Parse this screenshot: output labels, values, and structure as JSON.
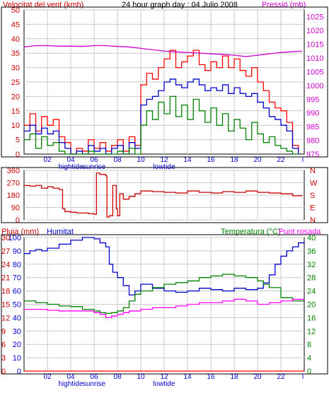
{
  "colors": {
    "wind_speed": "#ff0000",
    "wind_gust_avg": "#0000cc",
    "wind_min": "#008000",
    "pressure": "#cc00cc",
    "wind_dir": "#cc0000",
    "rain": "#ff0000",
    "humidity": "#0000cc",
    "temperature": "#008000",
    "dewpoint": "#ff00ff",
    "axis_left": "#cc0000",
    "axis_right": "#cc00cc",
    "frame": "#000000"
  },
  "header": {
    "left_label": "Velocitat del vent (kmh)",
    "title": "24 hour graph day : 04 Julio 2008",
    "right_label": "Pressió (mb)"
  },
  "time_axis": {
    "ticks": [
      "02",
      "04",
      "06",
      "08",
      "10",
      "12",
      "14",
      "16",
      "18",
      "20",
      "22",
      "l"
    ],
    "annotations": [
      {
        "label": "hightide",
        "near": "04"
      },
      {
        "label": "sunrise",
        "near": "06"
      },
      {
        "label": "lowtide",
        "near": "12"
      }
    ]
  },
  "panel3_header": {
    "rain_label": "Pluja (mm)",
    "humidity_label": "Humitat",
    "temp_label": "Temperatura (°C)",
    "dew_label": "Punt rosada"
  },
  "chart_data": [
    {
      "type": "line",
      "x_range": [
        0,
        24
      ],
      "y_left_ticks": [
        "0",
        "5",
        "10",
        "15",
        "20",
        "25",
        "30",
        "35",
        "40",
        "45",
        "50"
      ],
      "y_left_range": [
        0,
        50
      ],
      "y_right_ticks": [
        "975",
        "980",
        "985",
        "990",
        "995",
        "1000",
        "1005",
        "1010",
        "1015",
        "1020",
        "1025"
      ],
      "y_right_range": [
        975,
        1027.5
      ],
      "series": [
        {
          "key": "wind_speed",
          "axis": "left",
          "x": [
            0,
            0.5,
            1,
            1.5,
            2,
            2.5,
            3,
            3.5,
            4,
            4.5,
            5,
            5.5,
            6,
            6.5,
            7,
            7.5,
            8,
            8.5,
            9,
            9.5,
            10,
            10.5,
            11,
            11.5,
            12,
            12.5,
            13,
            13.5,
            14,
            14.5,
            15,
            15.5,
            16,
            16.5,
            17,
            17.5,
            18,
            18.5,
            19,
            19.5,
            20,
            20.5,
            21,
            21.5,
            22,
            22.5,
            23,
            23.5
          ],
          "y": [
            10,
            14,
            8,
            13,
            10,
            12,
            6,
            4,
            0,
            2,
            1,
            5,
            2,
            4,
            1,
            3,
            5,
            1,
            6,
            3,
            24,
            28,
            26,
            30,
            33,
            36,
            30,
            32,
            34,
            36,
            31,
            29,
            32,
            30,
            34,
            30,
            33,
            29,
            27,
            30,
            25,
            22,
            18,
            16,
            15,
            11,
            3,
            1
          ]
        },
        {
          "key": "wind_gust_avg",
          "axis": "left",
          "x": [
            0,
            0.5,
            1,
            1.5,
            2,
            2.5,
            3,
            3.5,
            4,
            4.5,
            5,
            5.5,
            6,
            6.5,
            7,
            7.5,
            8,
            8.5,
            9,
            9.5,
            10,
            10.5,
            11,
            11.5,
            12,
            12.5,
            13,
            13.5,
            14,
            14.5,
            15,
            15.5,
            16,
            16.5,
            17,
            17.5,
            18,
            18.5,
            19,
            19.5,
            20,
            20.5,
            21,
            21.5,
            22,
            22.5,
            23,
            23.5
          ],
          "y": [
            8,
            10,
            7,
            9,
            7,
            8,
            4,
            2,
            0,
            1,
            0,
            3,
            1,
            2,
            0,
            2,
            3,
            0,
            4,
            2,
            17,
            19,
            20,
            22,
            25,
            26,
            24,
            23,
            25,
            26,
            24,
            22,
            23,
            22,
            24,
            21,
            23,
            21,
            20,
            21,
            18,
            16,
            13,
            12,
            10,
            8,
            2,
            0
          ]
        },
        {
          "key": "wind_min",
          "axis": "left",
          "x": [
            0,
            0.5,
            1,
            1.5,
            2,
            2.5,
            3,
            3.5,
            4,
            4.5,
            5,
            5.5,
            6,
            6.5,
            7,
            7.5,
            8,
            8.5,
            9,
            9.5,
            10,
            10.5,
            11,
            11.5,
            12,
            12.5,
            13,
            13.5,
            14,
            14.5,
            15,
            15.5,
            16,
            16.5,
            17,
            17.5,
            18,
            18.5,
            19,
            19.5,
            20,
            20.5,
            21,
            21.5,
            22,
            22.5,
            23,
            23.5
          ],
          "y": [
            5,
            7,
            2,
            6,
            3,
            4,
            1,
            0,
            0,
            0,
            0,
            1,
            0,
            0,
            0,
            0,
            1,
            0,
            2,
            0,
            10,
            15,
            12,
            18,
            14,
            20,
            13,
            17,
            12,
            19,
            15,
            11,
            16,
            10,
            14,
            8,
            12,
            9,
            5,
            11,
            7,
            4,
            6,
            3,
            2,
            1,
            0,
            0
          ]
        },
        {
          "key": "pressure",
          "axis": "right",
          "x": [
            0,
            1,
            2,
            3,
            4,
            5,
            6,
            7,
            8,
            9,
            10,
            11,
            12,
            13,
            14,
            15,
            16,
            17,
            18,
            19,
            20,
            21,
            22,
            23,
            23.8
          ],
          "y": [
            1014,
            1014.5,
            1014.5,
            1014.3,
            1014.3,
            1014.2,
            1014.5,
            1014.5,
            1014.2,
            1014,
            1013.5,
            1013,
            1012.5,
            1012.2,
            1012,
            1011.8,
            1011.5,
            1011.3,
            1011,
            1010.5,
            1011,
            1011.5,
            1012,
            1012.3,
            1012.5
          ]
        }
      ]
    },
    {
      "type": "line",
      "x_range": [
        0,
        24
      ],
      "y_left_ticks": [
        "0",
        "90",
        "180",
        "270",
        "360"
      ],
      "y_left_range": [
        0,
        360
      ],
      "y_right_ticks": [
        "N",
        "W",
        "S",
        "E",
        "N"
      ],
      "series": [
        {
          "key": "wind_dir",
          "axis": "left",
          "x": [
            0,
            0.5,
            1,
            1.5,
            2,
            2.5,
            3,
            3.3,
            3.5,
            4,
            4.5,
            5,
            5.5,
            6,
            6.2,
            6.5,
            7,
            7.1,
            7.3,
            7.6,
            7.9,
            8,
            8.2,
            8.5,
            9,
            9.5,
            10,
            11,
            12,
            13,
            14,
            15,
            16,
            17,
            18,
            19,
            20,
            21,
            22,
            23,
            23.8
          ],
          "y": [
            250,
            245,
            250,
            230,
            240,
            230,
            220,
            80,
            60,
            55,
            50,
            50,
            45,
            40,
            340,
            330,
            320,
            20,
            30,
            250,
            80,
            30,
            190,
            150,
            170,
            190,
            210,
            205,
            200,
            195,
            210,
            200,
            195,
            205,
            200,
            210,
            200,
            195,
            190,
            175,
            180
          ]
        }
      ]
    },
    {
      "type": "line",
      "x_range": [
        0,
        24
      ],
      "y_left_ticks": [
        "0",
        "10",
        "20",
        "30",
        "40",
        "50",
        "60",
        "70",
        "80",
        "90",
        "100"
      ],
      "y_left_range": [
        0,
        100
      ],
      "y_left2_ticks": [
        "0",
        "3",
        "6",
        "9",
        "12",
        "15",
        "18",
        "21",
        "24",
        "27",
        "30"
      ],
      "y_left2_range": [
        0,
        30
      ],
      "y_right_ticks": [
        "0",
        "4",
        "8",
        "12",
        "16",
        "20",
        "24",
        "28",
        "32",
        "36",
        "40"
      ],
      "y_right_range": [
        0,
        40
      ],
      "series": [
        {
          "key": "rain",
          "axis": "left2",
          "x": [
            0,
            24
          ],
          "y": [
            0,
            0
          ]
        },
        {
          "key": "humidity",
          "axis": "left",
          "x": [
            0,
            0.5,
            1,
            1.5,
            2,
            3,
            4,
            5,
            6,
            6.5,
            7,
            7.3,
            7.6,
            8,
            8.5,
            9,
            9.5,
            10,
            11,
            12,
            13,
            14,
            15,
            16,
            17,
            18,
            19,
            20,
            20.5,
            21,
            21.5,
            22,
            22.5,
            23,
            23.5,
            24
          ],
          "y": [
            88,
            90,
            91,
            90,
            92,
            95,
            98,
            100,
            99,
            96,
            93,
            80,
            74,
            70,
            64,
            57,
            60,
            65,
            62,
            60,
            59,
            60,
            62,
            61,
            60,
            62,
            61,
            62,
            66,
            72,
            80,
            86,
            90,
            93,
            96,
            97
          ]
        },
        {
          "key": "temperature",
          "axis": "right",
          "x": [
            0,
            1,
            2,
            3,
            4,
            5,
            6,
            6.5,
            7,
            7.5,
            8,
            8.5,
            9,
            9.5,
            10,
            11,
            12,
            13,
            14,
            15,
            16,
            17,
            18,
            19,
            20,
            20.5,
            21,
            22,
            23,
            24
          ],
          "y": [
            21,
            20.5,
            20,
            19.5,
            19.3,
            18.5,
            18,
            17.5,
            17.3,
            17.5,
            18,
            19,
            21,
            23,
            24,
            25,
            26,
            26.5,
            27,
            28,
            28.5,
            29,
            28.5,
            28,
            27,
            26,
            25,
            22,
            21,
            21
          ]
        },
        {
          "key": "dewpoint",
          "axis": "right",
          "x": [
            0,
            1,
            2,
            3,
            4,
            5,
            6,
            6.5,
            7,
            7.5,
            8,
            8.5,
            9,
            10,
            11,
            12,
            13,
            14,
            15,
            16,
            17,
            18,
            19,
            20,
            21,
            22,
            23,
            24
          ],
          "y": [
            18.5,
            18.5,
            18.2,
            18,
            18,
            18,
            17.5,
            17,
            16,
            16.5,
            17,
            17.5,
            18,
            18.5,
            19,
            19,
            19.5,
            20,
            20.5,
            20.5,
            21,
            21.5,
            21,
            20,
            20.5,
            21,
            21.5,
            21.5
          ]
        }
      ]
    }
  ]
}
